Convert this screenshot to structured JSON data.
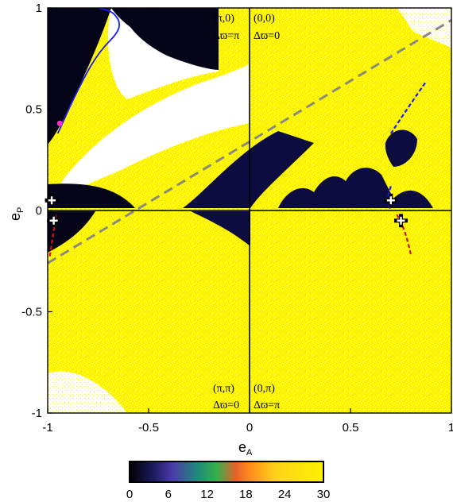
{
  "chart_data": {
    "type": "heatmap",
    "x": {
      "label_main": "e",
      "label_sub": "A",
      "range": [
        -1,
        1
      ],
      "ticks": [
        "-1",
        "-0.5",
        "0",
        "0.5",
        "1"
      ]
    },
    "y": {
      "label_main": "e",
      "label_sub": "P",
      "range": [
        -1,
        1
      ],
      "ticks": [
        "-1",
        "-0.5",
        "0",
        "0.5",
        "1"
      ]
    },
    "colorbar": {
      "range": [
        0,
        30
      ],
      "ticks": [
        "0",
        "6",
        "12",
        "18",
        "24",
        "30"
      ],
      "colors": [
        "#000000",
        "#1c1a5c",
        "#4a3aa8",
        "#1f8a7a",
        "#35b04a",
        "#e8602a",
        "#ff8c1a",
        "#ffd21a",
        "#fff200"
      ]
    },
    "quadrant_labels": {
      "top_left": [
        "(π,0)",
        "Δϖ=π"
      ],
      "top_right": [
        "(0,0)",
        "Δϖ=0"
      ],
      "bottom_left": [
        "(π,π)",
        "Δϖ=0"
      ],
      "bottom_right": [
        "(0,π)",
        "Δϖ=π"
      ]
    },
    "markers": [
      {
        "type": "cross",
        "x": -0.98,
        "y": 0.05
      },
      {
        "type": "cross",
        "x": -0.97,
        "y": -0.05
      },
      {
        "type": "cross",
        "x": 0.7,
        "y": 0.05
      },
      {
        "type": "cross",
        "x": 0.75,
        "y": -0.05
      },
      {
        "type": "dot",
        "x": -0.94,
        "y": 0.43,
        "color": "#ff33cc"
      }
    ],
    "reference_line": {
      "style": "dashed",
      "color": "#888888",
      "points": [
        [
          -1,
          -0.26
        ],
        [
          1,
          0.94
        ]
      ]
    },
    "curves": [
      {
        "color": "#1a1aff",
        "style": "solid",
        "points": [
          [
            -0.95,
            0.38
          ],
          [
            -0.85,
            0.6
          ],
          [
            -0.75,
            0.78
          ],
          [
            -0.63,
            0.9
          ],
          [
            -0.67,
            0.98
          ],
          [
            -0.75,
            1.0
          ]
        ]
      },
      {
        "color": "#1a1aff",
        "style": "dashed",
        "points": [
          [
            0.7,
            0.38
          ],
          [
            0.78,
            0.5
          ],
          [
            0.87,
            0.63
          ]
        ]
      },
      {
        "color": "#1a1aff",
        "style": "dashed",
        "points": [
          [
            0.7,
            0.12
          ],
          [
            0.68,
            0.05
          ],
          [
            0.7,
            0.0
          ]
        ]
      },
      {
        "color": "#d01010",
        "style": "dashed",
        "points": [
          [
            -0.96,
            -0.02
          ],
          [
            -0.97,
            -0.1
          ],
          [
            -0.99,
            -0.23
          ]
        ]
      },
      {
        "color": "#d01010",
        "style": "dashed",
        "points": [
          [
            0.73,
            -0.02
          ],
          [
            0.77,
            -0.1
          ],
          [
            0.8,
            -0.22
          ]
        ]
      }
    ]
  }
}
